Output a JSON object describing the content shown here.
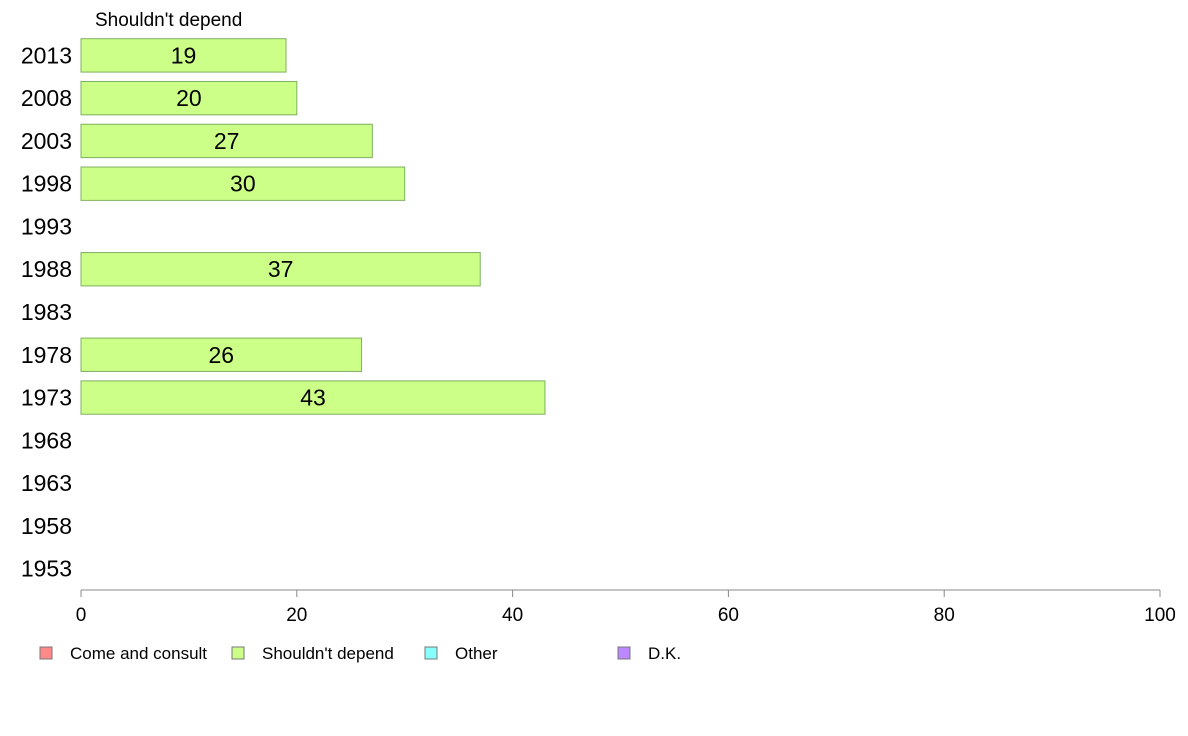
{
  "chart_data": {
    "type": "bar",
    "orientation": "horizontal",
    "series_header": "Shouldn't depend",
    "categories": [
      "2013",
      "2008",
      "2003",
      "1998",
      "1993",
      "1988",
      "1983",
      "1978",
      "1973",
      "1968",
      "1963",
      "1958",
      "1953"
    ],
    "series": [
      {
        "name": "Shouldn't depend",
        "color": "#ccff88",
        "values": [
          19,
          20,
          27,
          30,
          null,
          37,
          null,
          26,
          43,
          null,
          null,
          null,
          null
        ],
        "data_labels": [
          "19",
          "20",
          "27",
          "30",
          "",
          "37",
          "",
          "26",
          "43",
          "",
          "",
          "",
          ""
        ]
      }
    ],
    "xlim": [
      0,
      100
    ],
    "xticks": [
      0,
      20,
      40,
      60,
      80,
      100
    ],
    "xtick_labels": [
      "0",
      "20",
      "40",
      "60",
      "80",
      "100"
    ],
    "grid": false,
    "legend_position": "bottom",
    "legend": [
      {
        "label": "Come and consult",
        "color": "#ff8888"
      },
      {
        "label": "Shouldn't depend",
        "color": "#ccff88"
      },
      {
        "label": "Other",
        "color": "#88ffff"
      },
      {
        "label": "D.K.",
        "color": "#bb88ff"
      }
    ]
  }
}
